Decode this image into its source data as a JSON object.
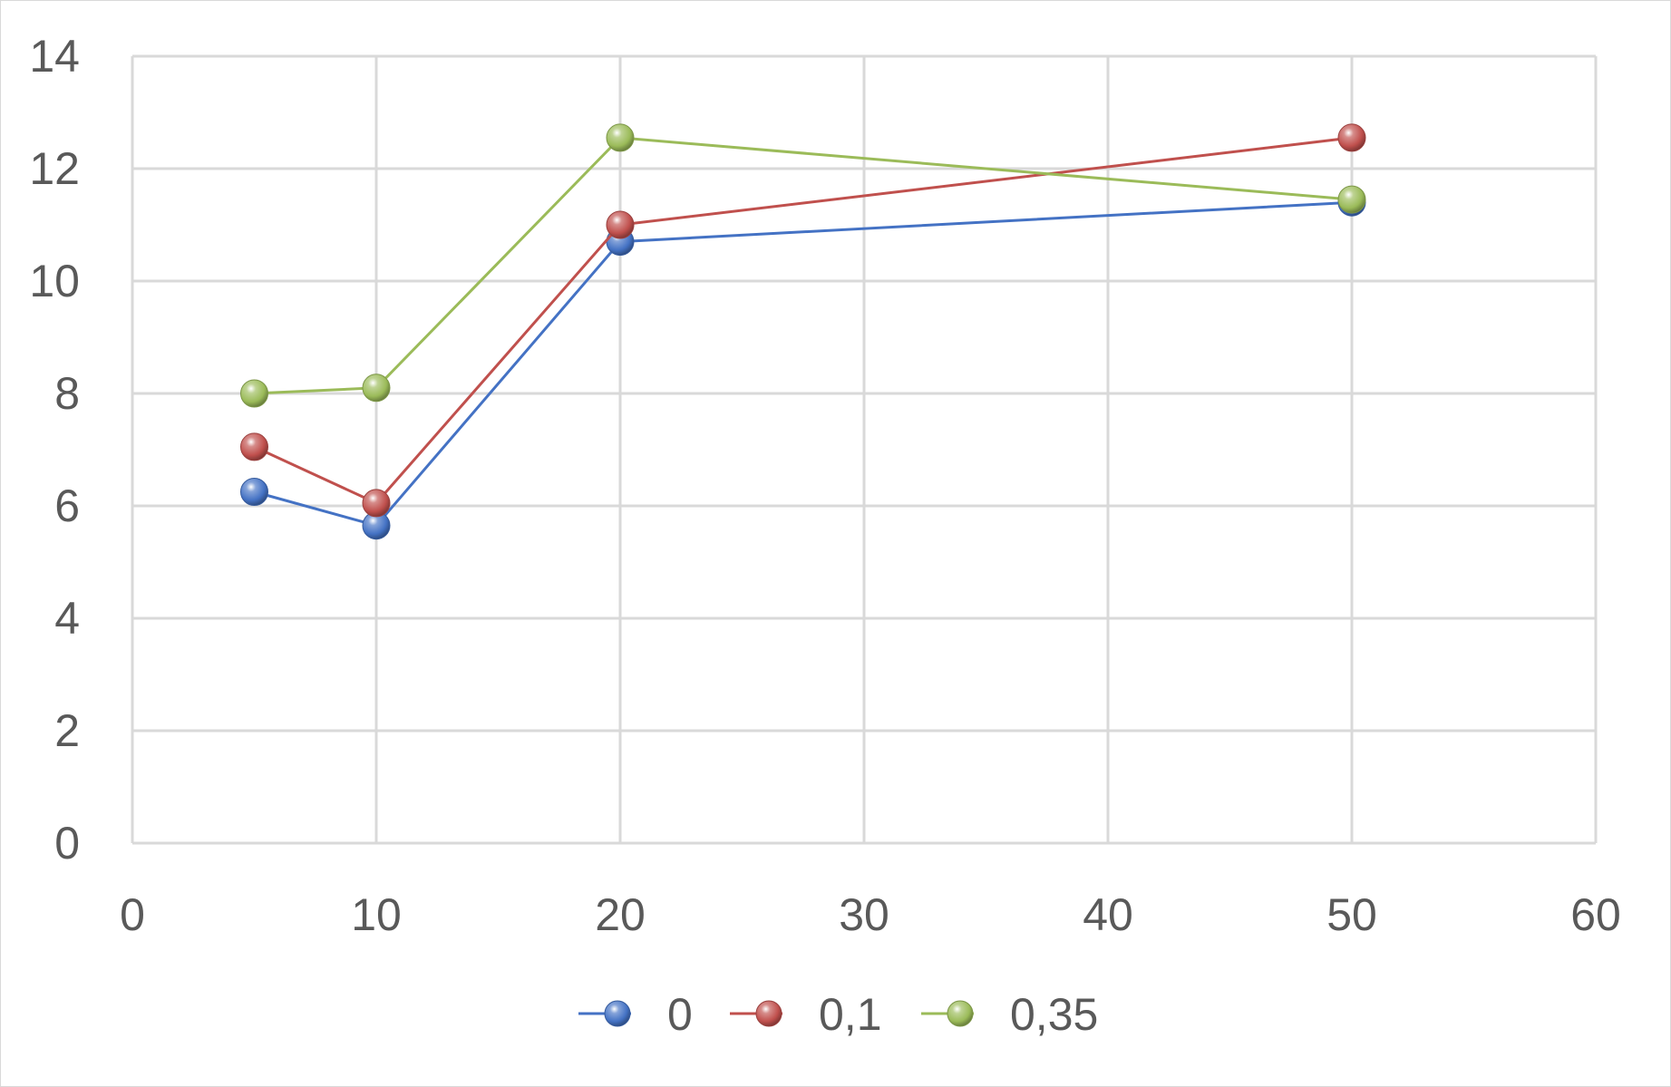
{
  "chart_data": {
    "type": "scatter",
    "title": "",
    "xlabel": "",
    "ylabel": "",
    "xlim": [
      0,
      60
    ],
    "ylim": [
      0,
      14
    ],
    "xticks": [
      0,
      10,
      20,
      30,
      40,
      50,
      60
    ],
    "yticks": [
      0,
      2,
      4,
      6,
      8,
      10,
      12,
      14
    ],
    "xtick_labels": [
      "0",
      "10",
      "20",
      "30",
      "40",
      "50",
      "60"
    ],
    "ytick_labels": [
      "0",
      "2",
      "4",
      "6",
      "8",
      "10",
      "12",
      "14"
    ],
    "grid": true,
    "legend_position": "bottom",
    "series": [
      {
        "name": "0",
        "color": "#4472c4",
        "x": [
          5,
          10,
          20,
          50
        ],
        "y": [
          6.25,
          5.65,
          10.7,
          11.4
        ]
      },
      {
        "name": "0,1",
        "color": "#c0504d",
        "x": [
          5,
          10,
          20,
          50
        ],
        "y": [
          7.05,
          6.05,
          11.0,
          12.55
        ]
      },
      {
        "name": "0,35",
        "color": "#9bbb59",
        "x": [
          5,
          10,
          20,
          50
        ],
        "y": [
          8.0,
          8.1,
          12.55,
          11.45
        ]
      }
    ]
  }
}
